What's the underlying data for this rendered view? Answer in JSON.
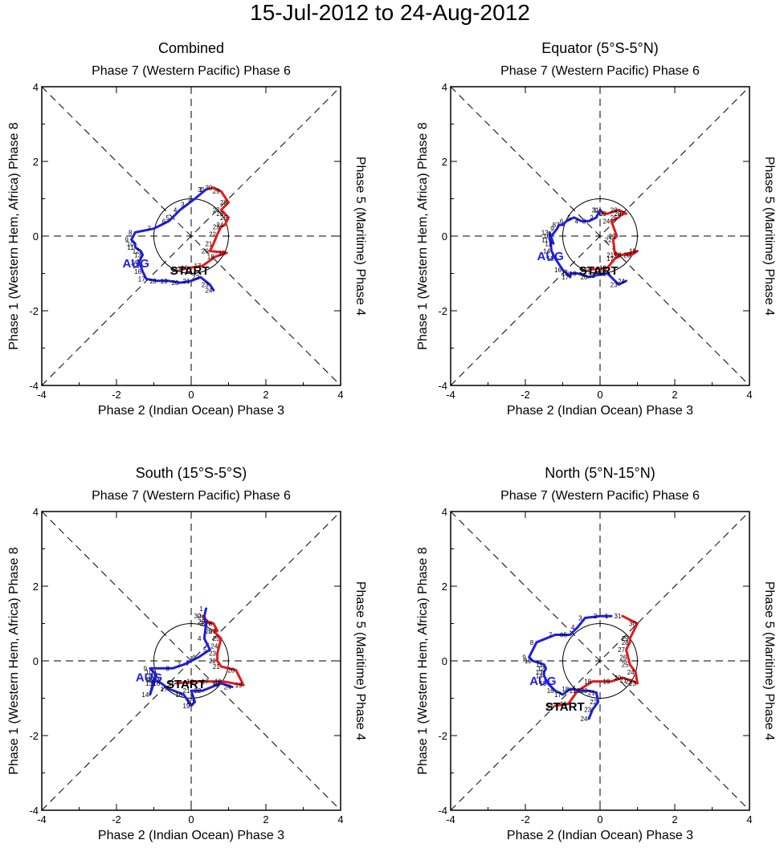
{
  "title": "15-Jul-2012 to 24-Aug-2012",
  "common": {
    "xlabel": "Phase 2 (Indian Ocean) Phase 3",
    "top_label": "Phase 7 (Western Pacific) Phase 6",
    "left_label": "Phase 1 (Western Hem, Africa) Phase 8",
    "right_label": "Phase 5 (Maritime) Phase 4",
    "start_label": "START",
    "month_label": "AUG",
    "colors": {
      "july": "#e31a1c",
      "august": "#1f1fe0",
      "axis": "#000000"
    }
  },
  "chart_data": [
    {
      "type": "scatter",
      "title": "Combined",
      "xlim": [
        -4,
        4
      ],
      "ylim": [
        -4,
        4
      ],
      "x_ticks": [
        "-4",
        "-2",
        "0",
        "2",
        "4"
      ],
      "y_ticks": [
        "-4",
        "-2",
        "0",
        "2",
        "4"
      ],
      "series": [
        {
          "name": "July",
          "color": "#e31a1c",
          "days": [
            15,
            16,
            17,
            18,
            19,
            20,
            21,
            22,
            23,
            24,
            25,
            26,
            27,
            28,
            29,
            30,
            31
          ],
          "x": [
            -0.3,
            -0.05,
            0.3,
            0.65,
            0.95,
            0.5,
            0.6,
            0.7,
            0.8,
            0.9,
            1.0,
            0.9,
            0.8,
            1.0,
            0.8,
            0.6,
            0.4
          ],
          "y": [
            -0.9,
            -0.85,
            -0.8,
            -0.55,
            -0.45,
            -0.4,
            -0.2,
            0.05,
            0.25,
            0.3,
            0.5,
            0.6,
            0.7,
            0.9,
            1.2,
            1.3,
            1.25
          ]
        },
        {
          "name": "August",
          "color": "#1f1fe0",
          "days": [
            1,
            2,
            3,
            4,
            5,
            6,
            7,
            8,
            9,
            10,
            11,
            12,
            13,
            14,
            15,
            16,
            17,
            18,
            19,
            20,
            21,
            22,
            23,
            24
          ],
          "x": [
            0.4,
            0.1,
            -0.1,
            -0.3,
            -0.5,
            -0.6,
            -1.0,
            -1.5,
            -1.6,
            -1.5,
            -1.5,
            -1.35,
            -1.3,
            -1.4,
            -1.35,
            -1.3,
            -1.2,
            -0.9,
            -0.6,
            -0.3,
            0.0,
            0.25,
            0.5,
            0.6
          ],
          "y": [
            1.25,
            1.0,
            0.85,
            0.7,
            0.5,
            0.4,
            0.2,
            0.1,
            -0.1,
            -0.2,
            -0.3,
            -0.4,
            -0.5,
            -0.7,
            -0.8,
            -0.95,
            -1.15,
            -1.2,
            -1.2,
            -1.25,
            -1.2,
            -1.1,
            -1.3,
            -1.45
          ]
        }
      ]
    },
    {
      "type": "scatter",
      "title": "Equator (5°S-5°N)",
      "xlim": [
        -4,
        4
      ],
      "ylim": [
        -4,
        4
      ],
      "x_ticks": [
        "-4",
        "-2",
        "0",
        "2",
        "4"
      ],
      "y_ticks": [
        "-4",
        "-2",
        "0",
        "2",
        "4"
      ],
      "series": [
        {
          "name": "July",
          "color": "#e31a1c",
          "days": [
            15,
            16,
            17,
            18,
            19,
            20,
            21,
            22,
            23,
            24,
            25,
            26,
            27,
            28,
            29,
            30,
            31
          ],
          "x": [
            -0.3,
            0.2,
            0.4,
            0.6,
            1.0,
            0.85,
            0.4,
            0.35,
            0.45,
            0.3,
            0.5,
            0.6,
            0.7,
            0.5,
            0.2,
            0.1,
            0.0
          ],
          "y": [
            -0.9,
            -0.85,
            -0.6,
            -0.5,
            -0.4,
            -0.5,
            -0.5,
            -0.1,
            0.0,
            0.4,
            0.5,
            0.6,
            0.6,
            0.7,
            0.6,
            0.6,
            0.7
          ]
        },
        {
          "name": "August",
          "color": "#1f1fe0",
          "days": [
            1,
            2,
            3,
            4,
            5,
            6,
            7,
            8,
            9,
            10,
            11,
            12,
            13,
            14,
            15,
            16,
            17,
            18,
            19,
            20,
            21,
            22,
            23,
            24
          ],
          "x": [
            0.0,
            -0.1,
            -0.3,
            -0.5,
            -0.7,
            -0.9,
            -1.0,
            -1.1,
            -1.15,
            -1.3,
            -1.35,
            -1.25,
            -1.35,
            -1.3,
            -1.2,
            -1.0,
            -0.8,
            -0.8,
            -0.6,
            -0.3,
            -0.1,
            0.2,
            0.5,
            0.7
          ],
          "y": [
            0.7,
            0.5,
            0.4,
            0.4,
            0.5,
            0.4,
            0.3,
            0.3,
            0.2,
            0.0,
            -0.1,
            -0.2,
            0.1,
            -0.4,
            -0.6,
            -0.9,
            -1.1,
            -1.0,
            -1.0,
            -1.1,
            -1.05,
            -1.0,
            -1.3,
            -1.2
          ]
        }
      ]
    },
    {
      "type": "scatter",
      "title": "South (15°S-5°S)",
      "xlim": [
        -4,
        4
      ],
      "ylim": [
        -4,
        4
      ],
      "x_ticks": [
        "-4",
        "-2",
        "0",
        "2",
        "4"
      ],
      "y_ticks": [
        "-4",
        "-2",
        "0",
        "2",
        "4"
      ],
      "series": [
        {
          "name": "July",
          "color": "#e31a1c",
          "days": [
            15,
            16,
            17,
            18,
            19,
            20,
            21,
            22,
            23,
            24,
            25,
            26,
            27,
            28,
            29,
            30,
            31
          ],
          "x": [
            -0.4,
            0.1,
            0.5,
            0.85,
            1.4,
            1.2,
            0.8,
            0.7,
            0.7,
            0.75,
            0.8,
            0.6,
            0.7,
            0.6,
            0.4,
            0.3,
            0.5
          ],
          "y": [
            -0.6,
            -0.55,
            -0.55,
            -0.55,
            -0.65,
            -0.25,
            -0.15,
            0.0,
            0.2,
            0.4,
            0.6,
            0.8,
            0.8,
            1.0,
            1.05,
            1.2,
            1.0
          ]
        },
        {
          "name": "August",
          "color": "#1f1fe0",
          "days": [
            1,
            2,
            3,
            4,
            5,
            6,
            7,
            8,
            9,
            10,
            11,
            12,
            13,
            14,
            15,
            16,
            17,
            18,
            19,
            20,
            21,
            22,
            23,
            24
          ],
          "x": [
            0.4,
            0.35,
            0.4,
            0.35,
            0.5,
            0.2,
            -0.2,
            -0.5,
            -1.1,
            -1.0,
            -0.95,
            -0.95,
            -1.0,
            -1.1,
            -1.0,
            -0.8,
            -0.6,
            -0.2,
            0.0,
            0.1,
            0.0,
            0.3,
            0.8,
            1.1
          ],
          "y": [
            1.4,
            1.2,
            1.0,
            0.6,
            0.3,
            0.1,
            -0.1,
            -0.2,
            -0.2,
            -0.3,
            -0.4,
            -0.5,
            -0.6,
            -0.9,
            -0.5,
            -0.6,
            -0.75,
            -0.9,
            -1.2,
            -1.1,
            -0.8,
            -0.8,
            -0.6,
            -0.7
          ]
        }
      ]
    },
    {
      "type": "scatter",
      "title": "North (5°N-15°N)",
      "xlim": [
        -4,
        4
      ],
      "ylim": [
        -4,
        4
      ],
      "x_ticks": [
        "-4",
        "-2",
        "0",
        "2",
        "4"
      ],
      "y_ticks": [
        "-4",
        "-2",
        "0",
        "2",
        "4"
      ],
      "series": [
        {
          "name": "July",
          "color": "#e31a1c",
          "days": [
            15,
            16,
            17,
            18,
            19,
            20,
            21,
            22,
            23,
            24,
            25,
            26,
            27,
            28,
            29,
            30,
            31
          ],
          "x": [
            -1.2,
            -0.85,
            -0.6,
            -0.2,
            0.3,
            0.6,
            0.75,
            0.9,
            1.0,
            0.95,
            0.8,
            0.75,
            0.7,
            0.8,
            0.8,
            1.0,
            0.6
          ],
          "y": [
            -1.2,
            -1.15,
            -0.8,
            -0.55,
            -0.55,
            -0.45,
            -0.5,
            -0.55,
            -0.6,
            -0.3,
            -0.1,
            0.1,
            0.3,
            0.5,
            0.6,
            1.0,
            1.2
          ]
        },
        {
          "name": "August",
          "color": "#1f1fe0",
          "days": [
            1,
            2,
            3,
            4,
            5,
            6,
            7,
            8,
            9,
            10,
            11,
            12,
            13,
            14,
            15,
            16,
            17,
            18,
            19,
            20,
            21,
            22,
            23,
            24
          ],
          "x": [
            0.3,
            0.0,
            -0.4,
            -0.6,
            -0.8,
            -0.9,
            -1.2,
            -1.7,
            -1.9,
            -1.8,
            -1.5,
            -1.45,
            -1.5,
            -1.5,
            -1.4,
            -1.2,
            -1.0,
            -0.8,
            -0.5,
            -0.3,
            -0.1,
            -0.05,
            -0.2,
            -0.3
          ],
          "y": [
            1.2,
            1.2,
            1.15,
            0.9,
            0.7,
            0.7,
            0.7,
            0.5,
            0.1,
            0.0,
            -0.1,
            -0.2,
            -0.3,
            -0.4,
            -0.6,
            -0.8,
            -0.9,
            -0.75,
            -0.8,
            -0.8,
            -0.85,
            -1.1,
            -1.3,
            -1.55
          ]
        }
      ]
    }
  ]
}
